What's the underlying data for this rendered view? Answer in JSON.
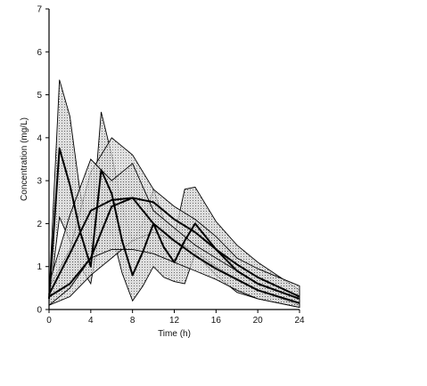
{
  "chart_data": {
    "type": "area",
    "xlabel": "Time (h)",
    "ylabel": "Concentration (mg/L)",
    "xlim": [
      0,
      24
    ],
    "ylim": [
      0,
      7
    ],
    "xticks": [
      0,
      4,
      8,
      12,
      16,
      20,
      24
    ],
    "yticks": [
      0,
      1,
      2,
      3,
      4,
      5,
      6,
      7
    ],
    "grid": false,
    "series": [
      {
        "x": [
          0,
          1,
          2,
          3,
          4,
          5,
          6,
          7,
          8,
          9,
          10,
          11,
          12,
          13,
          14,
          16,
          18,
          20,
          24
        ],
        "mean": [
          0.25,
          3.75,
          2.9,
          1.8,
          1.0,
          3.25,
          2.7,
          1.6,
          0.8,
          1.35,
          2.0,
          1.45,
          1.1,
          1.6,
          2.0,
          1.4,
          0.9,
          0.6,
          0.25
        ],
        "upper": [
          0.35,
          5.35,
          4.5,
          2.7,
          1.6,
          4.6,
          3.6,
          2.4,
          1.6,
          2.0,
          2.8,
          2.1,
          1.7,
          2.8,
          2.85,
          2.05,
          1.5,
          1.1,
          0.45
        ],
        "lower": [
          0.15,
          2.15,
          1.6,
          1.0,
          0.6,
          2.05,
          1.8,
          0.85,
          0.2,
          0.55,
          1.0,
          0.75,
          0.65,
          0.6,
          1.3,
          0.8,
          0.4,
          0.25,
          0.05
        ]
      },
      {
        "x": [
          0,
          2,
          4,
          6,
          8,
          10,
          12,
          14,
          16,
          18,
          20,
          24
        ],
        "mean": [
          0.3,
          0.6,
          1.2,
          2.4,
          2.6,
          2.5,
          2.1,
          1.8,
          1.4,
          1.05,
          0.75,
          0.3
        ],
        "upper": [
          0.5,
          1.4,
          3.2,
          4.0,
          3.6,
          2.8,
          2.4,
          2.1,
          1.7,
          1.2,
          0.95,
          0.55
        ],
        "lower": [
          0.1,
          0.3,
          0.8,
          1.2,
          1.6,
          1.8,
          1.6,
          1.35,
          1.0,
          0.7,
          0.45,
          0.1
        ]
      },
      {
        "x": [
          0,
          2,
          4,
          6,
          8,
          10,
          12,
          14,
          16,
          18,
          20,
          24
        ],
        "mean": [
          0.35,
          1.3,
          2.3,
          2.55,
          2.6,
          2.0,
          1.6,
          1.25,
          0.95,
          0.7,
          0.45,
          0.15
        ],
        "upper": [
          0.6,
          2.2,
          3.5,
          3.0,
          3.4,
          2.3,
          1.9,
          1.5,
          1.2,
          0.9,
          0.6,
          0.25
        ],
        "lower": [
          0.1,
          0.5,
          1.2,
          1.4,
          1.4,
          1.3,
          1.1,
          0.9,
          0.7,
          0.45,
          0.25,
          0.05
        ]
      }
    ]
  }
}
